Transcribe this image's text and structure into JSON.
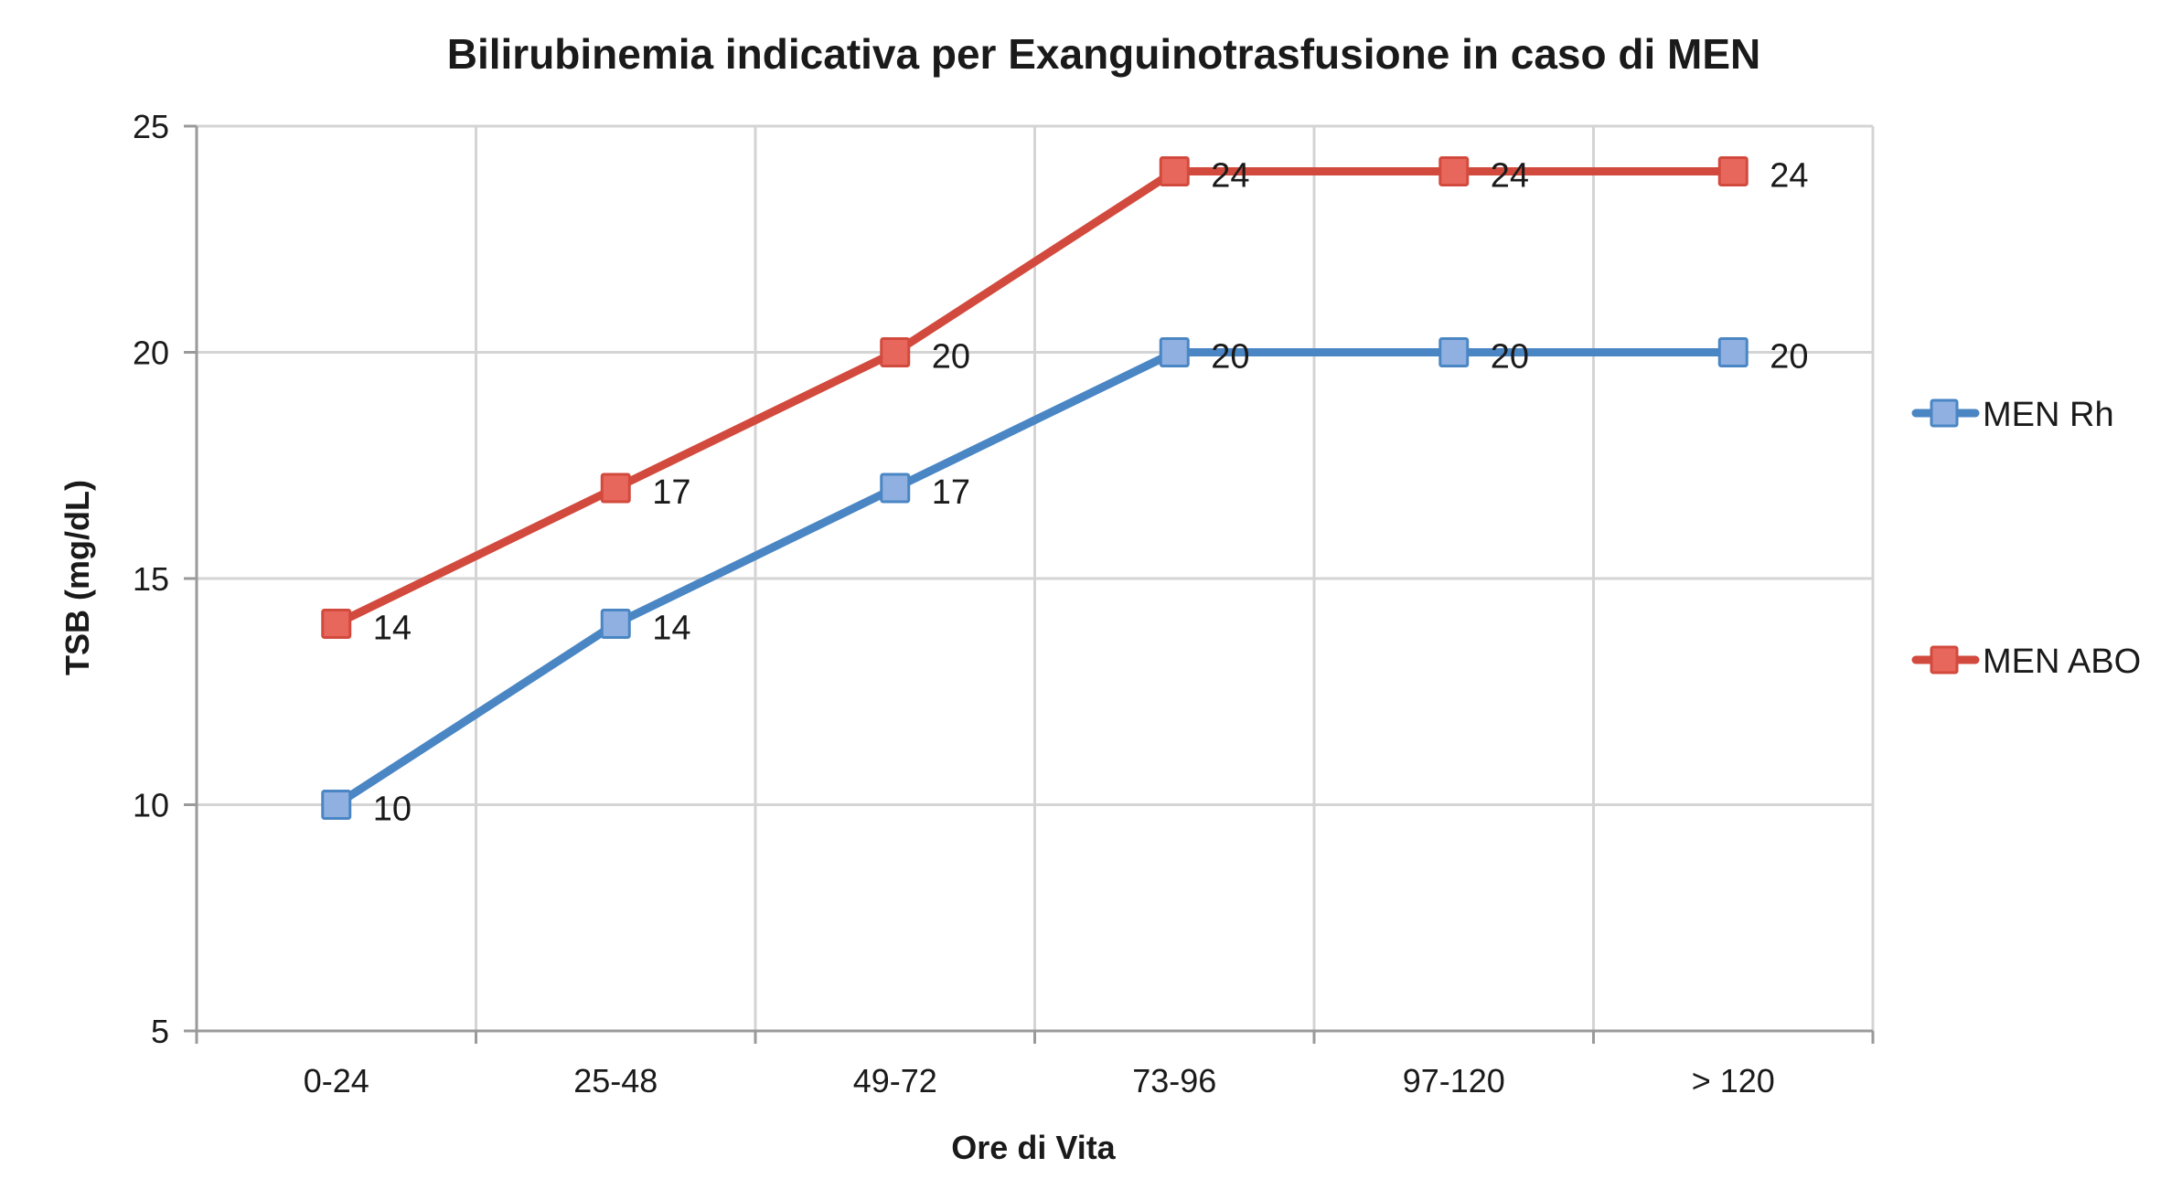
{
  "chart_data": {
    "type": "line",
    "title": "Bilirubinemia indicativa per Exanguinotrasfusione in caso di MEN",
    "xlabel": "Ore di Vita",
    "ylabel": "TSB (mg/dL)",
    "categories": [
      "0-24",
      "25-48",
      "49-72",
      "73-96",
      "97-120",
      "> 120"
    ],
    "ylim": [
      5,
      25
    ],
    "yticks": [
      5,
      10,
      15,
      20,
      25
    ],
    "grid": true,
    "legend_position": "right",
    "series": [
      {
        "name": "MEN Rh",
        "values": [
          10,
          14,
          17,
          20,
          20,
          20
        ],
        "color": "#4a86c4",
        "marker_color": "#8fb0e0"
      },
      {
        "name": "MEN ABO",
        "values": [
          14,
          17,
          20,
          24,
          24,
          24
        ],
        "color": "#d24a3d",
        "marker_color": "#e8675c"
      }
    ],
    "data_labels": true
  }
}
